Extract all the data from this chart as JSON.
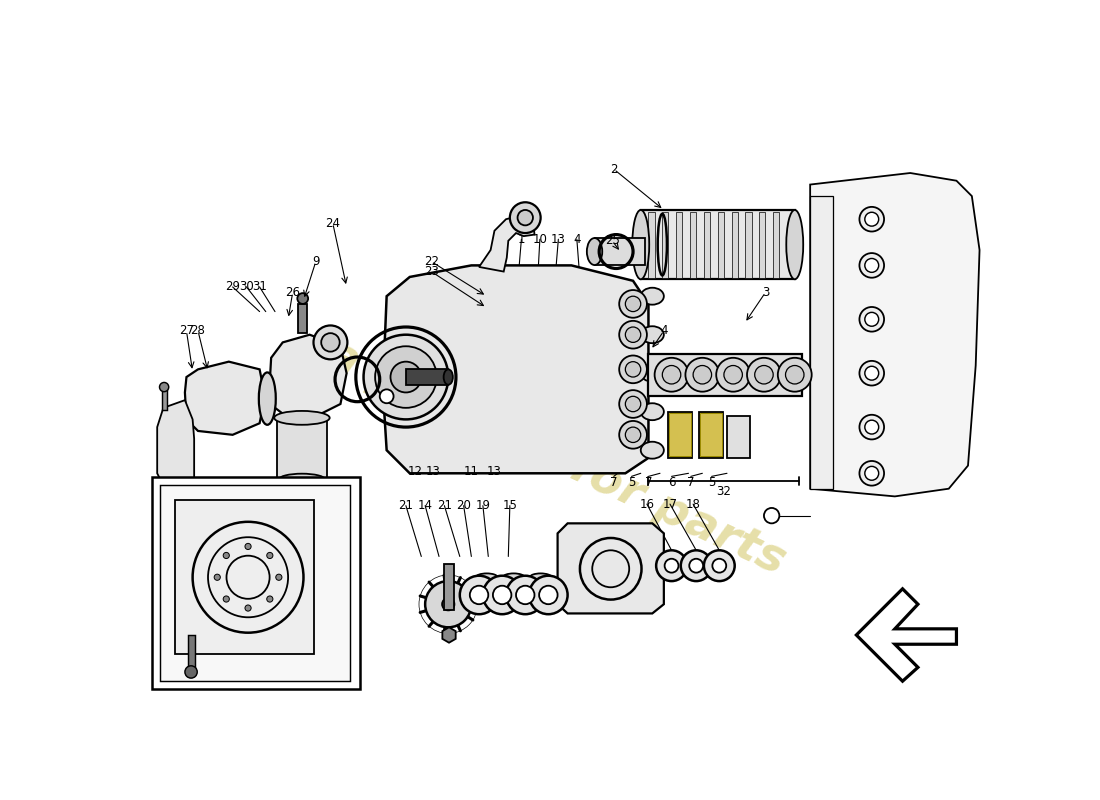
{
  "bg_color": "#ffffff",
  "watermark_text": "a passion for parts",
  "watermark_color": "#c8b840",
  "watermark_alpha": 0.45,
  "line_color": "#000000",
  "line_width": 1.3,
  "label_fontsize": 8.5,
  "gray_light": "#e8e8e8",
  "gray_mid": "#d0d0d0",
  "gray_dark": "#aaaaaa",
  "gold": "#c8b840",
  "dark": "#333333"
}
